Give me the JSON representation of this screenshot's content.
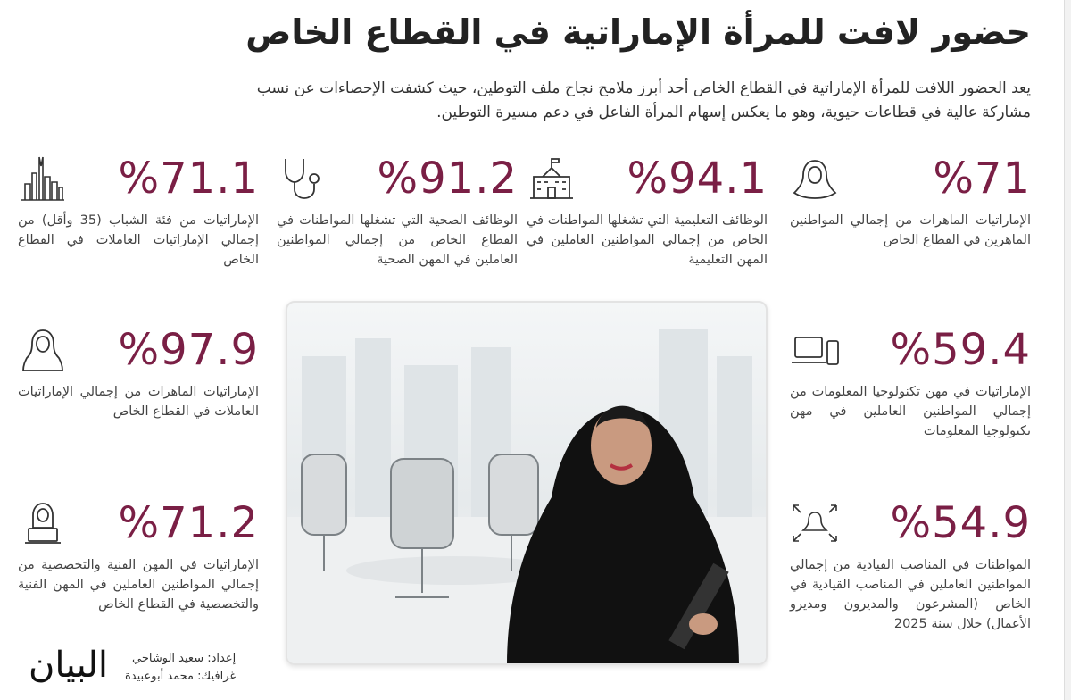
{
  "title": "حضور لافت للمرأة الإماراتية في القطاع الخاص",
  "intro": "يعد الحضور اللافت للمرأة الإماراتية في القطاع الخاص أحد أبرز ملامح نجاح ملف التوطين، حيث كشفت الإحصاءات عن نسب مشاركة عالية في قطاعات حيوية، وهو ما يعكس إسهام المرأة الفاعل في دعم مسيرة التوطين.",
  "accent_color": "#7a1f45",
  "stats": [
    {
      "value": "%71",
      "icon": "woman-hijab-icon",
      "text": "الإماراتيات الماهرات من إجمالي المواطنين الماهرين في القطاع الخاص"
    },
    {
      "value": "%94.1",
      "icon": "school-building-icon",
      "text": "الوظائف التعليمية التي تشغلها المواطنات في الخاص من إجمالي المواطنين العاملين في المهن التعليمية"
    },
    {
      "value": "%91.2",
      "icon": "stethoscope-icon",
      "text": "الوظائف الصحية التي تشغلها المواطنات في القطاع الخاص من إجمالي المواطنين العاملين في المهن الصحية"
    },
    {
      "value": "%71.1",
      "icon": "city-skyline-icon",
      "text": "الإماراتيات من فئة الشباب (35 وأقل) من إجمالي الإماراتيات العاملات في القطاع الخاص"
    },
    {
      "value": "%59.4",
      "icon": "laptop-phone-icon",
      "text": "الإماراتيات في مهن تكنولوجيا المعلومات من إجمالي المواطنين العاملين في مهن تكنولوجيا المعلومات"
    },
    {
      "value": "%97.9",
      "icon": "woman-hijab-icon",
      "text": "الإماراتيات الماهرات من إجمالي الإماراتيات العاملات في القطاع الخاص"
    },
    {
      "value": "%54.9",
      "icon": "leader-arrows-icon",
      "text": "المواطنات في المناصب القيادية من إجمالي المواطنين العاملين في المناصب القيادية في الخاص (المشرعون والمديرون ومديرو الأعمال) خلال سنة 2025"
    },
    {
      "value": "%71.2",
      "icon": "woman-laptop-icon",
      "text": "الإماراتيات في المهن الفنية والتخصصية من إجمالي المواطنين العاملين في المهن الفنية والتخصصية في القطاع الخاص"
    }
  ],
  "credits": {
    "prepared": "إعداد: سعيد الوشاحي",
    "graphics": "غرافيك: محمد أبوعبيدة"
  },
  "logo": "البيان"
}
